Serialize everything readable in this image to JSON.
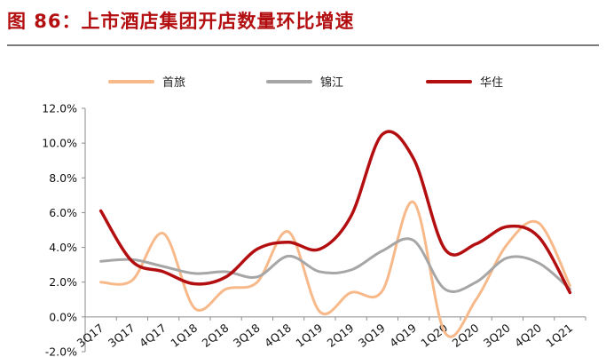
{
  "figure": {
    "title": "图  86：上市酒店集团开店数量环比增速"
  },
  "colors": {
    "title": "#b30e10",
    "rule": "#7a7a7a"
  },
  "chart_data": {
    "type": "line",
    "x": [
      "3Q17",
      "3Q17",
      "4Q17",
      "1Q18",
      "2Q18",
      "3Q18",
      "4Q18",
      "1Q19",
      "2Q19",
      "3Q19",
      "4Q19",
      "1Q20",
      "2Q20",
      "3Q20",
      "4Q20",
      "1Q21"
    ],
    "xtick_labels_shown": [
      "3Q17",
      "3Q17",
      "4Q17",
      "1Q18",
      "2Q18",
      "3Q18",
      "4Q18",
      "1Q19",
      "2Q19",
      "3Q19",
      "4Q19",
      "1Q20",
      "2Q20",
      "3Q20",
      "4Q20",
      "1Q21"
    ],
    "series": [
      {
        "name": "首旅",
        "color": "#f7b98a",
        "values": [
          2.0,
          2.1,
          4.8,
          0.5,
          1.6,
          2.0,
          4.9,
          0.3,
          1.4,
          1.5,
          6.6,
          -0.9,
          1.0,
          4.2,
          5.4,
          1.8
        ]
      },
      {
        "name": "锦江",
        "color": "#a6a6a6",
        "values": [
          3.2,
          3.3,
          2.9,
          2.5,
          2.6,
          2.3,
          3.5,
          2.6,
          2.7,
          3.8,
          4.4,
          1.6,
          2.0,
          3.4,
          3.1,
          1.6
        ]
      },
      {
        "name": "华住",
        "color": "#b30e10",
        "values": [
          6.1,
          3.2,
          2.6,
          1.9,
          2.3,
          3.9,
          4.3,
          3.9,
          5.8,
          10.5,
          9.1,
          3.9,
          4.2,
          5.2,
          4.6,
          1.4
        ]
      }
    ],
    "y_ticks": [
      "12.0%",
      "10.0%",
      "8.0%",
      "6.0%",
      "4.0%",
      "2.0%",
      "0.0%",
      "-2.0%"
    ],
    "ylim": [
      -2,
      12
    ],
    "grid": false,
    "legend": "top"
  }
}
